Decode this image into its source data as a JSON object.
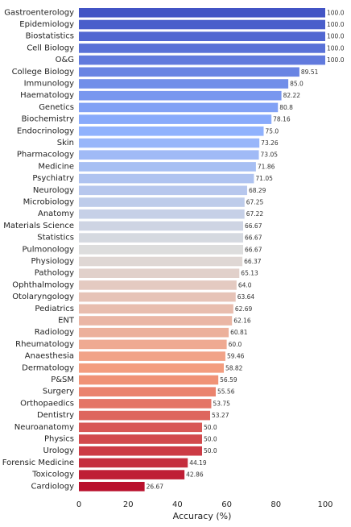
{
  "chart_data": {
    "type": "bar",
    "orientation": "horizontal",
    "categories": [
      "Gastroenterology",
      "Epidemiology",
      "Biostatistics",
      "Cell Biology",
      "O&G",
      "College Biology",
      "Immunology",
      "Haematology",
      "Genetics",
      "Biochemistry",
      "Endocrinology",
      "Skin",
      "Pharmacology",
      "Medicine",
      "Psychiatry",
      "Neurology",
      "Microbiology",
      "Anatomy",
      "Materials Science",
      "Statistics",
      "Pulmonology",
      "Physiology",
      "Pathology",
      "Ophthalmology",
      "Otolaryngology",
      "Pediatrics",
      "ENT",
      "Radiology",
      "Rheumatology",
      "Anaesthesia",
      "Dermatology",
      "P&SM",
      "Surgery",
      "Orthopaedics",
      "Dentistry",
      "Neuroanatomy",
      "Physics",
      "Urology",
      "Forensic Medicine",
      "Toxicology",
      "Cardiology"
    ],
    "values": [
      100.0,
      100.0,
      100.0,
      100.0,
      100.0,
      89.51,
      85.0,
      82.22,
      80.8,
      78.16,
      75.0,
      73.26,
      73.05,
      71.86,
      71.05,
      68.29,
      67.25,
      67.22,
      66.67,
      66.67,
      66.67,
      66.37,
      65.13,
      64.0,
      63.64,
      62.69,
      62.16,
      60.81,
      60.0,
      59.46,
      58.82,
      56.59,
      55.56,
      53.75,
      53.27,
      50.0,
      50.0,
      50.0,
      44.19,
      42.86,
      26.67
    ],
    "value_labels": [
      "100.0",
      "100.0",
      "100.0",
      "100.0",
      "100.0",
      "89.51",
      "85.0",
      "82.22",
      "80.8",
      "78.16",
      "75.0",
      "73.26",
      "73.05",
      "71.86",
      "71.05",
      "68.29",
      "67.25",
      "67.22",
      "66.67",
      "66.67",
      "66.67",
      "66.37",
      "65.13",
      "64.0",
      "63.64",
      "62.69",
      "62.16",
      "60.81",
      "60.0",
      "59.46",
      "58.82",
      "56.59",
      "55.56",
      "53.75",
      "53.27",
      "50.0",
      "50.0",
      "50.0",
      "44.19",
      "42.86",
      "26.67"
    ],
    "xlabel": "Accuracy (%)",
    "ylabel": "",
    "xlim": [
      0,
      100
    ],
    "xticks": [
      "0",
      "20",
      "40",
      "60",
      "80",
      "100"
    ],
    "grid": false,
    "colormap": "coolwarm (reversed)"
  }
}
